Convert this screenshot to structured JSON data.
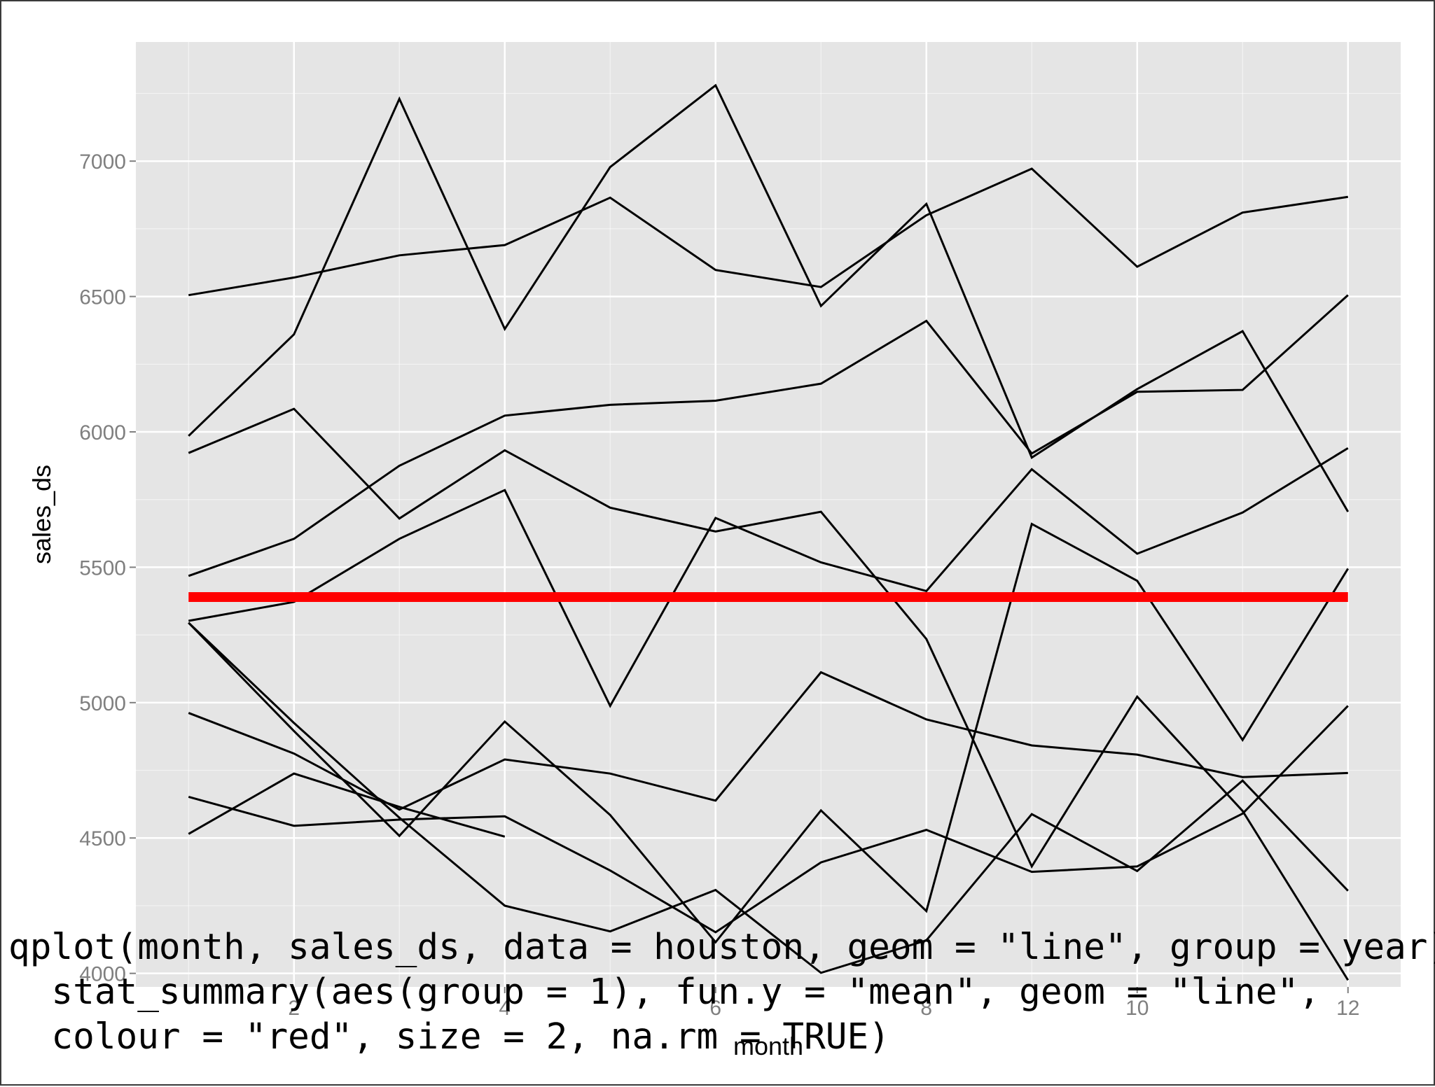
{
  "chart_data": {
    "type": "line",
    "xlabel": "month",
    "ylabel": "sales_ds",
    "xlim": [
      0.5,
      12.5
    ],
    "ylim": [
      3950,
      7440
    ],
    "x_ticks": [
      2,
      4,
      6,
      8,
      10,
      12
    ],
    "y_ticks": [
      4000,
      4500,
      5000,
      5500,
      6000,
      6500,
      7000
    ],
    "x_tick_labels": [
      "2",
      "4",
      "6",
      "8",
      "10",
      "12"
    ],
    "y_tick_labels": [
      "4000",
      "4500",
      "5000",
      "5500",
      "6000",
      "6500",
      "7000"
    ],
    "grid": true,
    "legend": "none",
    "colors": {
      "panel_background": "#e5e5e5",
      "grid_line": "#ffffff",
      "series_line": "#000000",
      "summary_line": "#ff0000",
      "tick_label": "#7f7f7f"
    },
    "series": [
      {
        "values": [
          6505,
          6570,
          6652,
          6690,
          6865,
          6598,
          6535,
          6800,
          6972,
          6610,
          6810,
          6868
        ]
      },
      {
        "values": [
          5985,
          6360,
          7230,
          6380,
          6978,
          7280,
          6465,
          6842,
          5905,
          6158,
          6372,
          5705
        ]
      },
      {
        "values": [
          5922,
          6085,
          5680,
          5932,
          5720,
          5632,
          5705,
          5235,
          4395,
          5022,
          4600,
          3975
        ]
      },
      {
        "values": [
          5468,
          5605,
          5875,
          6060,
          6100,
          6115,
          6178,
          6410,
          5920,
          6148,
          6155,
          6505
        ]
      },
      {
        "values": [
          5302,
          5372,
          5605,
          5785,
          4988,
          5682,
          5518,
          5412,
          5862,
          5550,
          5702,
          5940
        ]
      },
      {
        "values": [
          5295,
          4895,
          4508,
          4930,
          4585,
          4115,
          4602,
          4230,
          5660,
          5450,
          4862,
          5495
        ]
      },
      {
        "values": [
          5295,
          4925,
          4575,
          4250,
          4155,
          4308,
          4002,
          4122,
          4588,
          4378,
          4712,
          4305
        ]
      },
      {
        "values": [
          4962,
          4812,
          4605,
          4790,
          4738,
          4638,
          5112,
          4938,
          4842,
          4808,
          4725,
          4740
        ]
      },
      {
        "values": [
          4652,
          4545,
          4568,
          4580,
          4380,
          4152,
          4410,
          4530,
          4375,
          4395,
          4590,
          4988
        ]
      },
      {
        "values": [
          4515,
          4738,
          4615,
          4505
        ]
      }
    ],
    "summary_series": {
      "stat": "mean",
      "values": [
        5390,
        5390,
        5390,
        5390,
        5390,
        5390,
        5390,
        5390,
        5390,
        5390,
        5390,
        5390
      ]
    }
  },
  "caption": {
    "lines": [
      "qplot(month, sales_ds, data = houston, geom = \"line\", group = year) +",
      "  stat_summary(aes(group = 1), fun.y = \"mean\", geom = \"line\",",
      "  colour = \"red\", size = 2, na.rm = TRUE)"
    ]
  }
}
